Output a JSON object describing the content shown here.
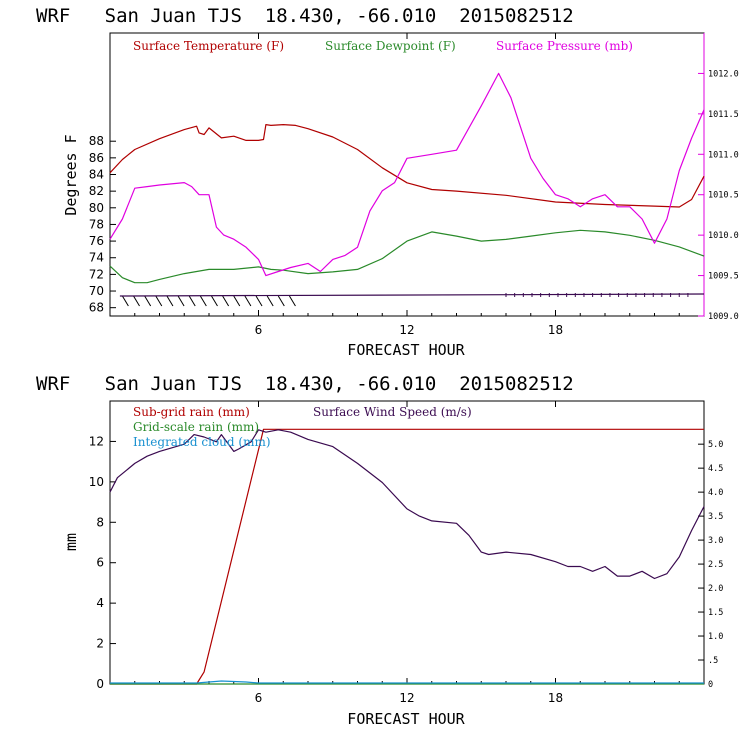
{
  "chart_data": [
    {
      "type": "line",
      "title": "WRF   San Juan TJS  18.430, -66.010  2015082512",
      "xlabel": "FORECAST HOUR",
      "ylabel": "Degrees F",
      "xlim": [
        0,
        24
      ],
      "ylim": [
        67,
        101
      ],
      "y2lim": [
        1009.0,
        1012.5
      ],
      "x_ticks": [
        "6",
        "12",
        "18"
      ],
      "y_ticks": [
        "68",
        "70",
        "72",
        "74",
        "76",
        "78",
        "80",
        "82",
        "84",
        "86",
        "88"
      ],
      "y2_ticks": [
        "1009.0",
        "1009.5",
        "1010.0",
        "1010.5",
        "1011.0",
        "1011.5",
        "1012.0"
      ],
      "legend": [
        {
          "label": "Surface Temperature (F)",
          "color": "#b00000"
        },
        {
          "label": "Surface Dewpoint (F)",
          "color": "#2a8a2a"
        },
        {
          "label": "Surface Pressure (mb)",
          "color": "#e000e0"
        }
      ],
      "series": [
        {
          "name": "Surface Temperature (F)",
          "axis": "left",
          "color": "#b00000",
          "x": [
            0,
            0.5,
            1,
            2,
            3,
            3.5,
            3.6,
            3.8,
            4,
            4.5,
            5,
            5.5,
            6,
            6.2,
            6.3,
            6.5,
            7,
            7.5,
            8,
            9,
            10,
            11,
            12,
            13,
            14,
            16,
            18,
            20,
            22,
            23,
            23.5,
            24
          ],
          "values": [
            84.2,
            85.8,
            87.0,
            88.3,
            89.4,
            89.8,
            89.0,
            88.8,
            89.6,
            88.4,
            88.6,
            88.1,
            88.1,
            88.2,
            90.0,
            89.9,
            90.0,
            89.9,
            89.5,
            88.5,
            87.0,
            84.8,
            83.0,
            82.2,
            82.0,
            81.5,
            80.7,
            80.4,
            80.2,
            80.1,
            81.0,
            83.8
          ]
        },
        {
          "name": "Surface Dewpoint (F)",
          "axis": "left",
          "color": "#2a8a2a",
          "x": [
            0,
            0.5,
            1,
            1.5,
            2,
            3,
            4,
            5,
            6,
            6.5,
            7,
            8,
            9,
            10,
            11,
            12,
            13,
            14,
            15,
            16,
            17,
            18,
            19,
            20,
            21,
            22,
            23,
            24
          ],
          "values": [
            73.0,
            71.6,
            71.0,
            71.0,
            71.4,
            72.1,
            72.6,
            72.6,
            72.9,
            72.6,
            72.5,
            72.1,
            72.3,
            72.6,
            73.9,
            76.0,
            77.1,
            76.6,
            76.0,
            76.2,
            76.6,
            77.0,
            77.3,
            77.1,
            76.7,
            76.1,
            75.3,
            74.2
          ]
        },
        {
          "name": "Surface Pressure (mb)",
          "axis": "right",
          "color": "#e000e0",
          "x": [
            0,
            0.5,
            1,
            1.5,
            2,
            3,
            3.3,
            3.6,
            4,
            4.3,
            4.6,
            5,
            5.5,
            6,
            6.3,
            6.8,
            7.3,
            8,
            8.5,
            9,
            9.5,
            10,
            10.5,
            11,
            11.5,
            12,
            13,
            14,
            15,
            15.7,
            16.2,
            17,
            17.5,
            18,
            18.5,
            19,
            19.5,
            20,
            20.5,
            21,
            21.5,
            22,
            22.5,
            23,
            23.5,
            24
          ],
          "values": [
            1009.95,
            1010.2,
            1010.58,
            1010.6,
            1010.62,
            1010.65,
            1010.6,
            1010.5,
            1010.5,
            1010.1,
            1010.0,
            1009.95,
            1009.85,
            1009.7,
            1009.5,
            1009.55,
            1009.6,
            1009.65,
            1009.55,
            1009.7,
            1009.75,
            1009.85,
            1010.3,
            1010.55,
            1010.65,
            1010.95,
            1011.0,
            1011.05,
            1011.6,
            1012.0,
            1011.7,
            1010.95,
            1010.7,
            1010.5,
            1010.45,
            1010.35,
            1010.45,
            1010.5,
            1010.35,
            1010.35,
            1010.2,
            1009.9,
            1010.2,
            1010.8,
            1011.2,
            1011.55
          ]
        }
      ],
      "wind_barbs_note": "wind barbs along bottom"
    },
    {
      "type": "line",
      "title": "WRF   San Juan TJS  18.430, -66.010  2015082512",
      "xlabel": "FORECAST HOUR",
      "ylabel": "mm",
      "xlim": [
        0,
        24
      ],
      "ylim": [
        0,
        14
      ],
      "y2lim": [
        0,
        5.9
      ],
      "x_ticks": [
        "6",
        "12",
        "18"
      ],
      "y_ticks": [
        "0",
        "2",
        "4",
        "6",
        "8",
        "10",
        "12"
      ],
      "y2_ticks": [
        "0",
        ".5",
        "1.0",
        "1.5",
        "2.0",
        "2.5",
        "3.0",
        "3.5",
        "4.0",
        "4.5",
        "5.0"
      ],
      "legend": [
        {
          "label": "Sub-grid rain (mm)",
          "color": "#b00000"
        },
        {
          "label": "Grid-scale rain (mm)",
          "color": "#2a8a2a"
        },
        {
          "label": "Integrated cloud (mm)",
          "color": "#1890d0"
        },
        {
          "label": "Surface Wind Speed (m/s)",
          "color": "#3a0a50"
        }
      ],
      "series": [
        {
          "name": "Sub-grid rain (mm)",
          "axis": "left",
          "color": "#b00000",
          "x": [
            0,
            3.5,
            3.8,
            6.2,
            24
          ],
          "values": [
            0,
            0,
            0.6,
            12.6,
            12.6
          ]
        },
        {
          "name": "Grid-scale rain (mm)",
          "axis": "left",
          "color": "#2a8a2a",
          "x": [
            0,
            24
          ],
          "values": [
            0,
            0
          ]
        },
        {
          "name": "Integrated cloud (mm)",
          "axis": "left",
          "color": "#1890d0",
          "x": [
            0,
            3.5,
            4.5,
            5.5,
            6,
            24
          ],
          "values": [
            0.05,
            0.05,
            0.15,
            0.1,
            0.05,
            0.05
          ]
        },
        {
          "name": "Surface Wind Speed (m/s)",
          "axis": "right",
          "color": "#3a0a50",
          "x": [
            0,
            0.3,
            1,
            1.5,
            2,
            3,
            3.4,
            3.8,
            4.3,
            4.5,
            5,
            5.2,
            5.7,
            6,
            6.3,
            6.8,
            7.3,
            8,
            9,
            10,
            11,
            12,
            12.5,
            13,
            14,
            14.5,
            15,
            15.3,
            16,
            17,
            18,
            18.5,
            19,
            19.5,
            20,
            20.5,
            21,
            21.5,
            22,
            22.5,
            23,
            23.5,
            24
          ],
          "values": [
            4.0,
            4.3,
            4.6,
            4.75,
            4.85,
            5.0,
            5.2,
            5.15,
            5.05,
            5.2,
            4.85,
            4.9,
            5.05,
            5.3,
            5.25,
            5.3,
            5.25,
            5.1,
            4.95,
            4.6,
            4.2,
            3.65,
            3.5,
            3.4,
            3.35,
            3.1,
            2.75,
            2.7,
            2.75,
            2.7,
            2.55,
            2.45,
            2.45,
            2.35,
            2.45,
            2.25,
            2.25,
            2.35,
            2.2,
            2.3,
            2.65,
            3.2,
            3.7
          ]
        }
      ]
    }
  ]
}
